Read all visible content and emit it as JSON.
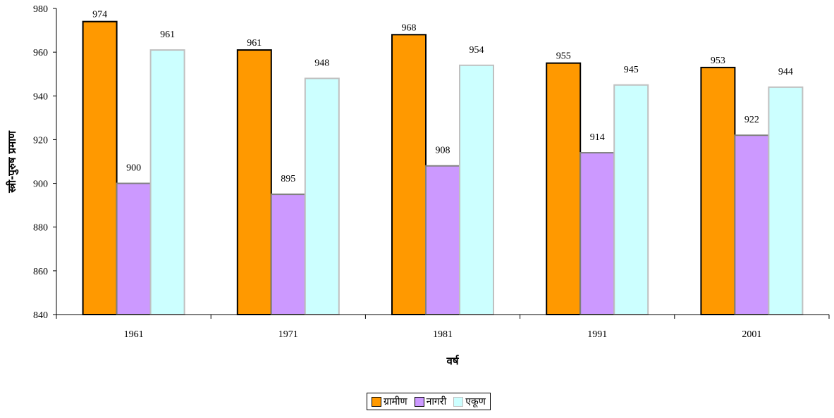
{
  "chart_data": {
    "type": "bar",
    "title": "",
    "xlabel": "वर्ष",
    "ylabel": "स्त्री-पुरुष प्रमाण",
    "categories": [
      "1961",
      "1971",
      "1981",
      "1991",
      "2001"
    ],
    "ylim": [
      840,
      980
    ],
    "yticks": [
      840,
      860,
      880,
      900,
      920,
      940,
      960,
      980
    ],
    "grid": false,
    "legend_position": "bottom",
    "series": [
      {
        "name": "ग्रामीण",
        "values": [
          974,
          961,
          968,
          955,
          953
        ],
        "color": "#FF9900",
        "border": "#000000"
      },
      {
        "name": "नागरी",
        "values": [
          900,
          895,
          908,
          914,
          922
        ],
        "color": "#CC99FF",
        "border": "#808080"
      },
      {
        "name": "एकूण",
        "values": [
          961,
          948,
          954,
          945,
          944
        ],
        "color": "#CCFFFF",
        "border": "#C0C0C0"
      }
    ]
  }
}
